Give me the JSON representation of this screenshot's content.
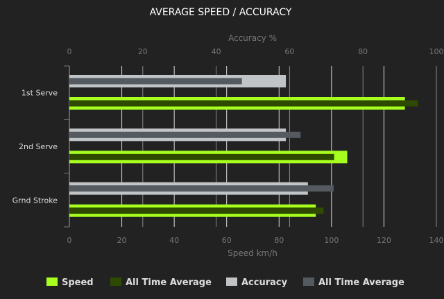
{
  "chart_data": {
    "type": "bar",
    "orientation": "horizontal",
    "title": "AVERAGE SPEED / ACCURACY",
    "categories": [
      "1st Serve",
      "2nd Serve",
      "Grnd Stroke"
    ],
    "top_axis": {
      "label": "Accuracy %",
      "range": [
        0,
        100
      ],
      "ticks": [
        0,
        20,
        40,
        60,
        80,
        100
      ]
    },
    "bottom_axis": {
      "label": "Speed km/h",
      "range": [
        0,
        140
      ],
      "ticks": [
        0,
        20,
        40,
        60,
        80,
        100,
        120,
        140
      ]
    },
    "grid": true,
    "legend_position": "bottom",
    "series": [
      {
        "name": "Speed",
        "axis": "bottom",
        "color": "#a6ff1f",
        "values": [
          128,
          106,
          94
        ]
      },
      {
        "name": "All Time Average",
        "axis": "bottom",
        "color": "#2e4a00",
        "values": [
          133,
          101,
          97
        ]
      },
      {
        "name": "Accuracy",
        "axis": "top",
        "color": "#c0c4c6",
        "values": [
          59,
          59,
          65
        ]
      },
      {
        "name": "All Time Average",
        "axis": "top",
        "color": "#555a60",
        "values": [
          47,
          63,
          72
        ]
      }
    ]
  }
}
